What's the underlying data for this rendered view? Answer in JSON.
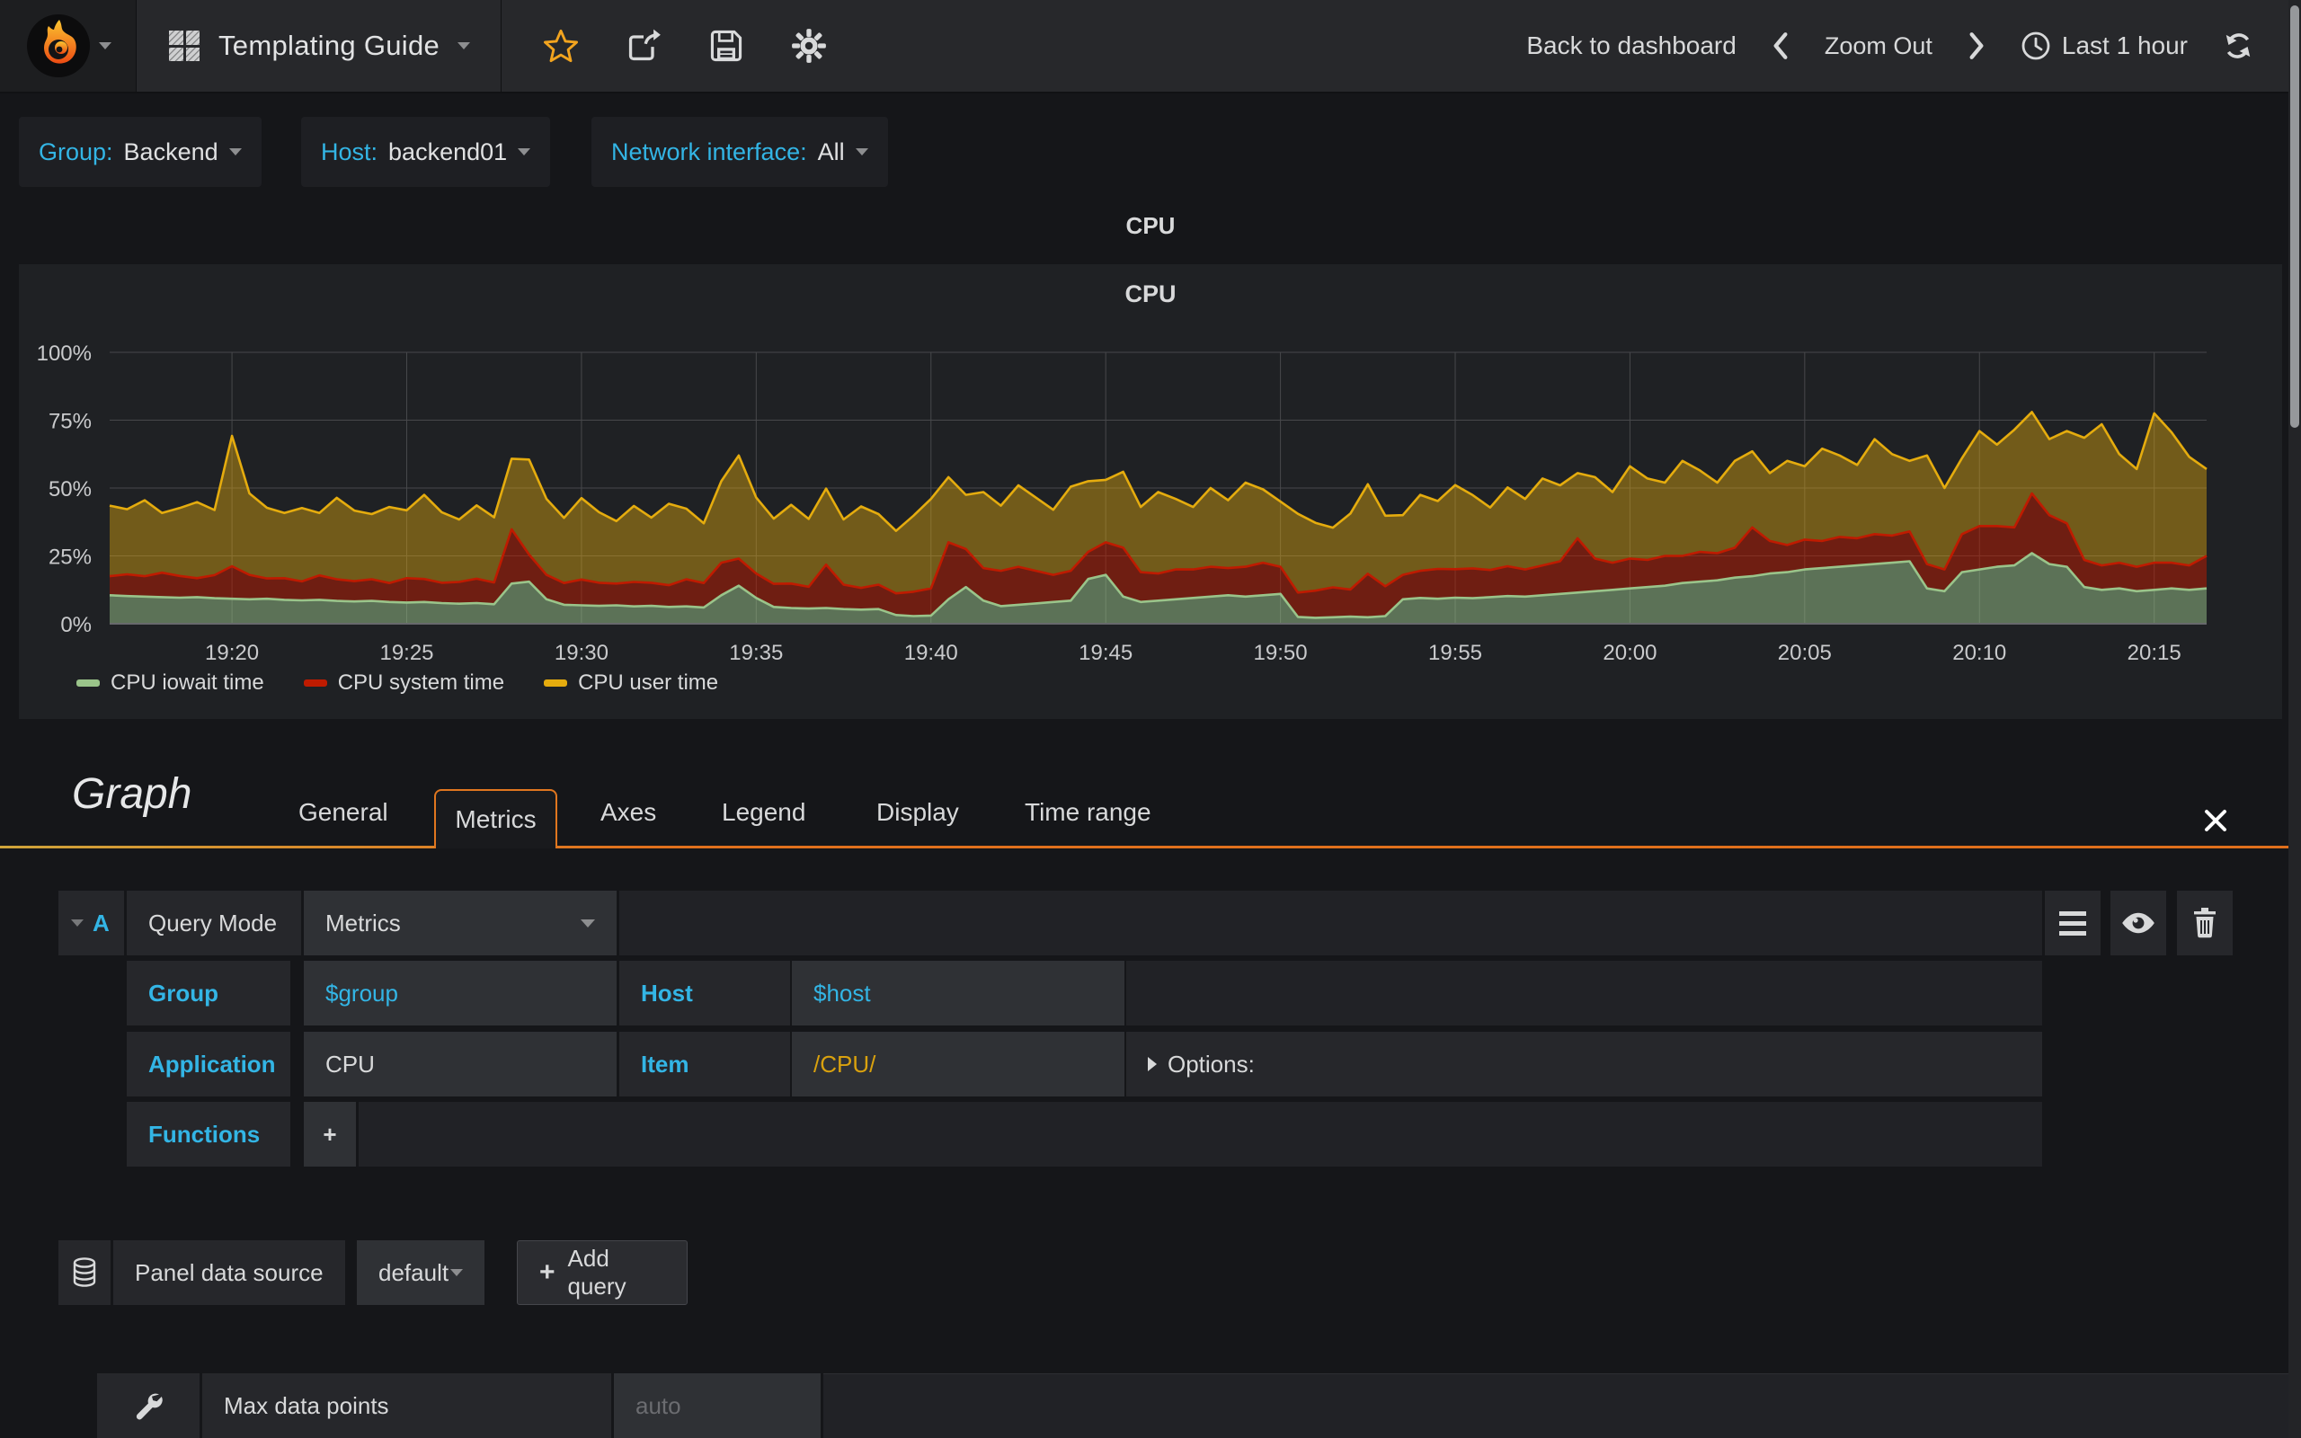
{
  "colors": {
    "accent_blue": "#33b5e5",
    "tab_orange": "#e0761f",
    "star_orange": "#f2a41f",
    "query_item_yellow": "#d9a10e"
  },
  "navbar": {
    "dashboard_title": "Templating Guide",
    "back_to_dashboard": "Back to dashboard",
    "zoom_out": "Zoom Out",
    "time_range": "Last 1 hour"
  },
  "variables": {
    "group": {
      "label": "Group:",
      "value": "Backend"
    },
    "host": {
      "label": "Host:",
      "value": "backend01"
    },
    "network": {
      "label": "Network interface:",
      "value": "All"
    }
  },
  "panel": {
    "header_title": "CPU",
    "graph_title": "CPU"
  },
  "chart_data": {
    "type": "area",
    "stacked": true,
    "unit": "percent",
    "title": "CPU",
    "start_time": "19:16:30",
    "span_seconds": 3600,
    "step_seconds": 30,
    "ylim": [
      0,
      100
    ],
    "yticks": [
      "0%",
      "25%",
      "50%",
      "75%",
      "100%"
    ],
    "xticks": [
      "19:20",
      "19:25",
      "19:30",
      "19:35",
      "19:40",
      "19:45",
      "19:50",
      "19:55",
      "20:00",
      "20:05",
      "20:10",
      "20:15"
    ],
    "grid": true,
    "legend_position": "bottom-left",
    "series": [
      {
        "name": "CPU iowait time",
        "color": "#9AC48A",
        "fill_opacity": 0.5,
        "values": [
          10.5,
          10.2,
          10,
          9.8,
          9.6,
          9.8,
          9.4,
          9.2,
          9,
          9.2,
          8.8,
          8.6,
          8.8,
          8.4,
          8.2,
          8.4,
          8,
          7.8,
          8,
          7.6,
          7.4,
          7.6,
          7.2,
          14.8,
          15.5,
          9,
          7,
          6.8,
          6.6,
          6.8,
          6.4,
          6.6,
          6.2,
          6.4,
          6,
          10.5,
          14,
          9.5,
          6.2,
          5.8,
          5.6,
          5.8,
          5.4,
          5.2,
          5.4,
          3.2,
          2.8,
          3,
          9,
          13.5,
          8.5,
          6.5,
          7,
          7.5,
          8,
          8.5,
          16.5,
          18,
          10,
          8,
          8.5,
          9,
          9.5,
          10,
          10.5,
          10,
          10.5,
          11,
          2.5,
          2.2,
          2.4,
          2.6,
          2.4,
          2.8,
          9,
          9.5,
          9.2,
          9.6,
          9.4,
          9.8,
          10.2,
          10,
          10.5,
          11,
          11.5,
          12,
          12.5,
          13,
          13.5,
          14,
          15,
          15.5,
          16,
          17,
          17.5,
          18.5,
          19,
          20,
          20.5,
          21,
          21.5,
          22,
          22.5,
          23,
          13,
          12,
          19,
          20,
          21,
          21.5,
          26,
          22,
          21,
          13.5,
          12.5,
          13,
          12,
          12.5,
          13,
          12.5,
          13
        ]
      },
      {
        "name": "CPU system time",
        "color": "#BF1B00",
        "fill_opacity": 0.5,
        "values": [
          7,
          8,
          7.5,
          9,
          8,
          7,
          8.5,
          12,
          9,
          7.5,
          8,
          7,
          9,
          8,
          7.5,
          8,
          7,
          9,
          8.5,
          7.5,
          8,
          9,
          8,
          20,
          10,
          9,
          8,
          9.5,
          8.5,
          8,
          9,
          8.5,
          8,
          10,
          9,
          12,
          10,
          9,
          8.5,
          9,
          8,
          16,
          9,
          8,
          9,
          8,
          9,
          10,
          21,
          14,
          12,
          13,
          14,
          12,
          10,
          11,
          10,
          12,
          18,
          11,
          10,
          11,
          10.5,
          11,
          10,
          11,
          12,
          10,
          9,
          10,
          11,
          10,
          16,
          11,
          9,
          10,
          11,
          10.5,
          11,
          10,
          11,
          10,
          11,
          12,
          20,
          12,
          10,
          11,
          10,
          11,
          10,
          11,
          10,
          11,
          18,
          12,
          10,
          11,
          10,
          11,
          10,
          11,
          10,
          11,
          9,
          8,
          14,
          16,
          15,
          14,
          22,
          18,
          16,
          10,
          9,
          9.5,
          9,
          10,
          9.5,
          9,
          12
        ]
      },
      {
        "name": "CPU user time",
        "color": "#E5AC0E",
        "fill_opacity": 0.42,
        "values": [
          26,
          24,
          28,
          22,
          25,
          28,
          24,
          48,
          30,
          26,
          24,
          27,
          23,
          30,
          26,
          24,
          28,
          25,
          31,
          26,
          23,
          27,
          24,
          26,
          35,
          28,
          24,
          30,
          26,
          23,
          28,
          24,
          30,
          26,
          22,
          30,
          38,
          28,
          24,
          29,
          25,
          28,
          24,
          30,
          26,
          23,
          28,
          33,
          24,
          20,
          28,
          24,
          30,
          27,
          24,
          31,
          26,
          23,
          28,
          24,
          30,
          26,
          23,
          29,
          25,
          31,
          27,
          24,
          29,
          25,
          22,
          28,
          33,
          26,
          22,
          28,
          25,
          31,
          27,
          23,
          29,
          26,
          32,
          28,
          24,
          30,
          26,
          34,
          30,
          27,
          35,
          30,
          26,
          32,
          28,
          25,
          31,
          27,
          34,
          30,
          27,
          35,
          30,
          26,
          40,
          30,
          28,
          35,
          30,
          36,
          30,
          28,
          34,
          45,
          52,
          40,
          36,
          55,
          48,
          40,
          32
        ]
      }
    ]
  },
  "editor": {
    "panel_type": "Graph",
    "tabs": {
      "general": "General",
      "metrics": "Metrics",
      "axes": "Axes",
      "legend": "Legend",
      "display": "Display",
      "time_range": "Time range"
    },
    "query": {
      "letter": "A",
      "query_mode_label": "Query Mode",
      "query_mode_value": "Metrics",
      "group_label": "Group",
      "group_value": "$group",
      "host_label": "Host",
      "host_value": "$host",
      "application_label": "Application",
      "application_value": "CPU",
      "item_label": "Item",
      "item_value": "/CPU/",
      "options_label": "Options:",
      "functions_label": "Functions",
      "add_function_label": "+"
    },
    "datasource": {
      "label": "Panel data source",
      "value": "default",
      "add_query_plus": "+",
      "add_query_label": "Add query"
    },
    "settings": {
      "max_data_points_label": "Max data points",
      "max_data_points_placeholder": "auto"
    }
  }
}
